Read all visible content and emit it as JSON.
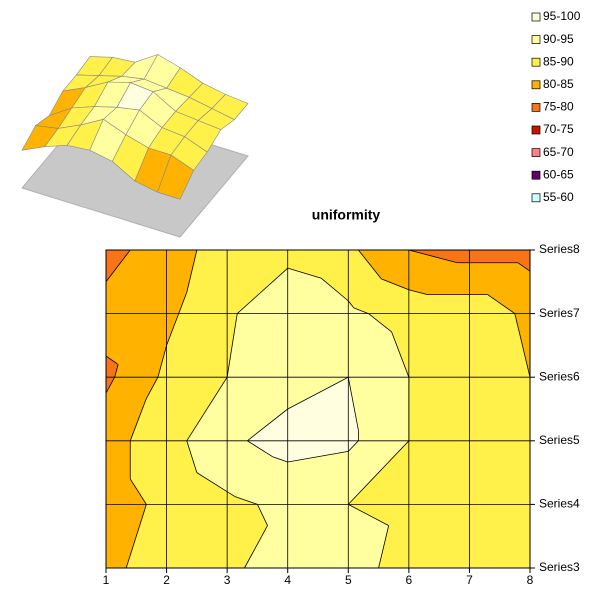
{
  "chart_data": {
    "type": "contour",
    "title": "uniformity",
    "categories": [
      "1",
      "2",
      "3",
      "4",
      "5",
      "6",
      "7",
      "8"
    ],
    "series": [
      {
        "name": "Series3",
        "values": [
          84,
          87,
          88,
          95,
          92,
          88,
          86,
          85
        ]
      },
      {
        "name": "Series4",
        "values": [
          83,
          86,
          89,
          91,
          90,
          89,
          87,
          85
        ]
      },
      {
        "name": "Series5",
        "values": [
          83,
          88,
          94,
          97,
          96,
          90,
          89,
          88
        ]
      },
      {
        "name": "Series6",
        "values": [
          79,
          86,
          90,
          93,
          95,
          90,
          89,
          85
        ]
      },
      {
        "name": "Series7",
        "values": [
          82,
          84,
          89,
          95,
          91,
          88,
          88,
          84
        ]
      },
      {
        "name": "Series8",
        "values": [
          78,
          83,
          87,
          88,
          86,
          80,
          78,
          78
        ]
      }
    ],
    "bands": [
      {
        "label": "95-100",
        "min": 95,
        "max": 100,
        "color": "#ffffe0"
      },
      {
        "label": "90-95",
        "min": 90,
        "max": 95,
        "color": "#ffffa0"
      },
      {
        "label": "85-90",
        "min": 85,
        "max": 90,
        "color": "#fff04a"
      },
      {
        "label": "80-85",
        "min": 80,
        "max": 85,
        "color": "#ffb300"
      },
      {
        "label": "75-80",
        "min": 75,
        "max": 80,
        "color": "#f87418"
      },
      {
        "label": "70-75",
        "min": 70,
        "max": 75,
        "color": "#cc1100"
      },
      {
        "label": "65-70",
        "min": 65,
        "max": 70,
        "color": "#ff8080"
      },
      {
        "label": "60-65",
        "min": 60,
        "max": 65,
        "color": "#660066"
      },
      {
        "label": "55-60",
        "min": 55,
        "max": 60,
        "color": "#ccffff"
      }
    ]
  }
}
